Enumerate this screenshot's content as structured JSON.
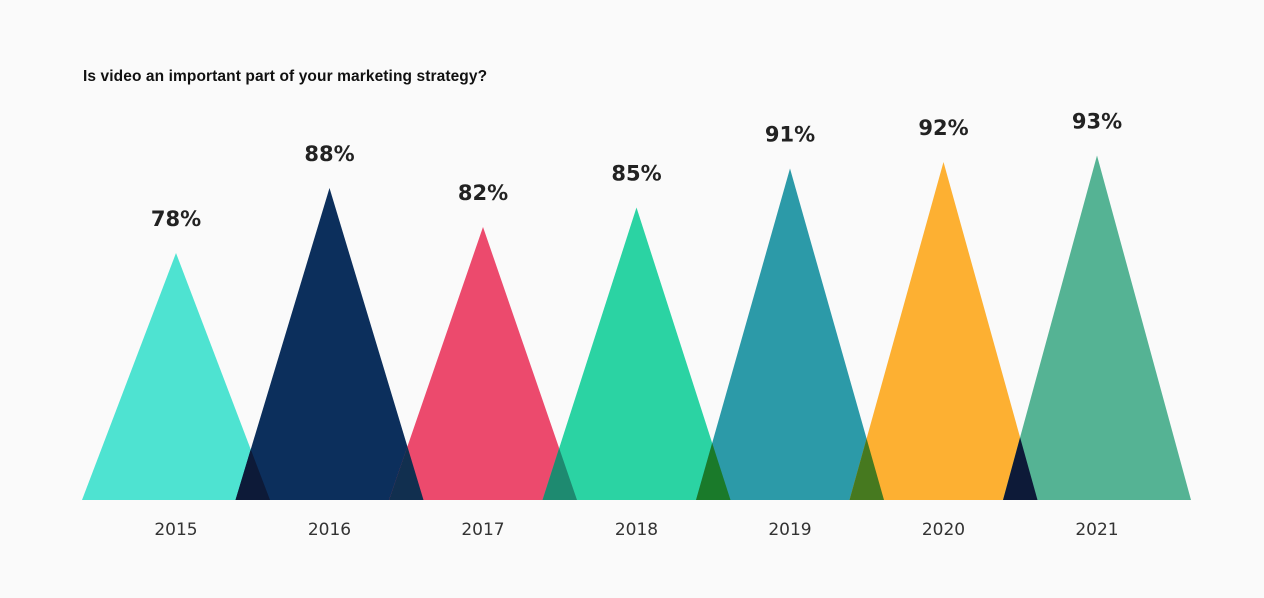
{
  "chart_data": {
    "type": "bar",
    "title": "Is video an important part of your marketing strategy?",
    "categories": [
      "2015",
      "2016",
      "2017",
      "2018",
      "2019",
      "2020",
      "2021"
    ],
    "values": [
      78,
      88,
      82,
      85,
      91,
      92,
      93
    ],
    "value_labels": [
      "78%",
      "88%",
      "82%",
      "85%",
      "91%",
      "92%",
      "93%"
    ],
    "colors": [
      "#4ee3d1",
      "#0c2f5c",
      "#ec4a6d",
      "#2bd3a3",
      "#2c9aa8",
      "#fdb032",
      "#55b394"
    ],
    "overlap_colors": [
      "#0d1a38",
      "#112f4f",
      "#1e8a70",
      "#1a7a2a",
      "#46791f"
    ],
    "ylim": [
      0,
      100
    ],
    "grid": false,
    "xlabel": "",
    "ylabel": ""
  }
}
